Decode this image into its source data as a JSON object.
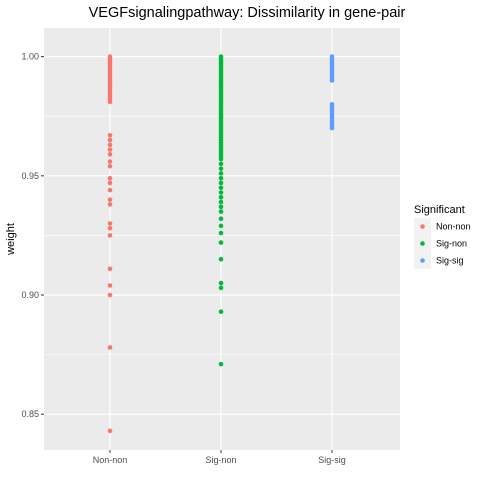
{
  "chart_data": {
    "type": "scatter",
    "title": "VEGFsignalingpathway: Dissimilarity in gene-pair",
    "xlabel": "",
    "ylabel": "weight",
    "categories": [
      "Non-non",
      "Sig-non",
      "Sig-sig"
    ],
    "ylim": [
      0.835,
      1.012
    ],
    "yticks": [
      "0.85",
      "0.90",
      "0.95",
      "1.00"
    ],
    "grid": true,
    "legend": {
      "title": "Significant",
      "position": "right",
      "entries": [
        "Non-non",
        "Sig-non",
        "Sig-sig"
      ]
    },
    "series": [
      {
        "name": "Non-non",
        "color": "#F8766D",
        "category": "Non-non",
        "values": [
          1.0,
          0.999,
          0.998,
          0.997,
          0.996,
          0.995,
          0.994,
          0.993,
          0.992,
          0.991,
          0.99,
          0.989,
          0.988,
          0.987,
          0.986,
          0.985,
          0.984,
          0.983,
          0.982,
          0.981,
          0.967,
          0.965,
          0.963,
          0.961,
          0.959,
          0.956,
          0.954,
          0.949,
          0.947,
          0.944,
          0.94,
          0.938,
          0.93,
          0.928,
          0.925,
          0.911,
          0.904,
          0.9,
          0.878,
          0.843
        ]
      },
      {
        "name": "Sig-non",
        "color": "#00BA38",
        "category": "Sig-non",
        "values": [
          1.0,
          0.999,
          0.998,
          0.997,
          0.996,
          0.995,
          0.994,
          0.993,
          0.992,
          0.991,
          0.99,
          0.989,
          0.988,
          0.987,
          0.986,
          0.985,
          0.984,
          0.983,
          0.982,
          0.981,
          0.98,
          0.979,
          0.978,
          0.977,
          0.976,
          0.975,
          0.974,
          0.973,
          0.972,
          0.971,
          0.97,
          0.969,
          0.968,
          0.967,
          0.966,
          0.965,
          0.964,
          0.963,
          0.962,
          0.961,
          0.96,
          0.959,
          0.958,
          0.957,
          0.955,
          0.953,
          0.951,
          0.949,
          0.947,
          0.945,
          0.943,
          0.941,
          0.939,
          0.937,
          0.935,
          0.932,
          0.929,
          0.926,
          0.922,
          0.915,
          0.905,
          0.903,
          0.893,
          0.871
        ]
      },
      {
        "name": "Sig-sig",
        "color": "#619CFF",
        "category": "Sig-sig",
        "values": [
          1.0,
          0.999,
          0.998,
          0.997,
          0.996,
          0.995,
          0.994,
          0.993,
          0.992,
          0.991,
          0.99,
          0.98,
          0.979,
          0.978,
          0.977,
          0.976,
          0.975,
          0.974,
          0.973,
          0.972,
          0.971,
          0.97
        ]
      }
    ]
  }
}
